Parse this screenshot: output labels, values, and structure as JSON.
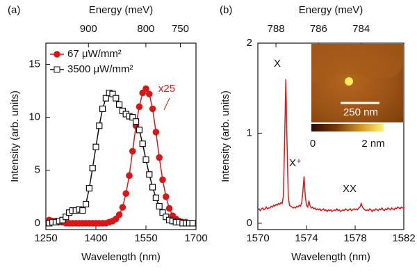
{
  "chart_data": [
    {
      "type": "line",
      "panel": "(a)",
      "x2label": "Energy (meV)",
      "xlabel": "Wavelength (nm)",
      "ylabel": "Intensity (arb. units)",
      "xlim": [
        1250,
        1700
      ],
      "xticks": [
        1250,
        1400,
        1550,
        1700
      ],
      "ylim": [
        -0.6,
        17
      ],
      "yticks": [
        0,
        5,
        10,
        15
      ],
      "x2lim": [
        991.9,
        729.3
      ],
      "x2ticks": [
        900,
        800,
        750
      ],
      "x2scale": "reciprocal",
      "legend": "upper left",
      "grid": false,
      "x": [
        1260,
        1270,
        1280,
        1290,
        1300,
        1310,
        1320,
        1330,
        1340,
        1350,
        1360,
        1370,
        1380,
        1390,
        1400,
        1410,
        1420,
        1430,
        1440,
        1450,
        1460,
        1470,
        1480,
        1490,
        1500,
        1510,
        1520,
        1530,
        1540,
        1550,
        1560,
        1570,
        1580,
        1590,
        1600,
        1610,
        1620,
        1630,
        1640,
        1650,
        1660,
        1670,
        1680,
        1690
      ],
      "series": [
        {
          "name": "67 μW/mm²",
          "color": "#d81818",
          "marker": "circle",
          "values": [
            0.3,
            0.2,
            0.2,
            0.1,
            0.1,
            0,
            0,
            0,
            0,
            0,
            0,
            0,
            0,
            0,
            0,
            0,
            0,
            0,
            0.1,
            0.2,
            0.4,
            0.8,
            1.5,
            2.8,
            4.5,
            6.8,
            9.2,
            11,
            12.3,
            12.7,
            12.2,
            10.8,
            8.6,
            6.2,
            4.1,
            2.5,
            1.4,
            0.7,
            0.4,
            0.2,
            0.1,
            0.1,
            0,
            0
          ]
        },
        {
          "name": "3500 μW/mm²",
          "color": "#111111",
          "marker": "square",
          "values": [
            0,
            0.1,
            0.1,
            0.2,
            0.3,
            0.6,
            1,
            1.2,
            1.2,
            1.3,
            1.2,
            1.8,
            3.3,
            5.2,
            7.2,
            9.2,
            10.8,
            11.8,
            12.3,
            12.2,
            11.8,
            11.2,
            10.6,
            10.3,
            10.1,
            10,
            9.6,
            8.8,
            7.5,
            6,
            4.6,
            3.4,
            2.4,
            1.6,
            1,
            0.6,
            0.3,
            0.2,
            0.1,
            0.1,
            0,
            0,
            0,
            0
          ]
        }
      ],
      "annotations": [
        "x25"
      ]
    },
    {
      "type": "line",
      "panel": "(b)",
      "x2label": "Energy (meV)",
      "xlabel": "Wavelength (nm)",
      "ylabel": "Intensity (arb. units)",
      "xlim": [
        1570,
        1582
      ],
      "xticks": [
        1570,
        1574,
        1578,
        1582
      ],
      "ylim": [
        -0.07,
        2
      ],
      "yticks": [
        0,
        1,
        2
      ],
      "x2lim": [
        788.85,
        782
      ],
      "x2ticks": [
        788,
        786,
        784
      ],
      "x2scale": "linear",
      "grid": false,
      "x": [
        1570,
        1570.1,
        1570.2,
        1570.3,
        1570.4,
        1570.5,
        1570.6,
        1570.7,
        1570.8,
        1570.9,
        1571,
        1571.1,
        1571.2,
        1571.3,
        1571.4,
        1571.5,
        1571.6,
        1571.7,
        1571.8,
        1571.9,
        1572,
        1572.1,
        1572.2,
        1572.3,
        1572.4,
        1572.5,
        1572.6,
        1572.7,
        1572.8,
        1572.9,
        1573,
        1573.1,
        1573.2,
        1573.3,
        1573.4,
        1573.5,
        1573.6,
        1573.7,
        1573.8,
        1573.9,
        1574,
        1574.1,
        1574.2,
        1574.3,
        1574.4,
        1574.5,
        1574.6,
        1574.7,
        1574.8,
        1574.9,
        1575,
        1575.1,
        1575.2,
        1575.3,
        1575.4,
        1575.5,
        1575.6,
        1575.7,
        1575.8,
        1575.9,
        1576,
        1576.1,
        1576.2,
        1576.3,
        1576.4,
        1576.5,
        1576.6,
        1576.7,
        1576.8,
        1576.9,
        1577,
        1577.1,
        1577.2,
        1577.3,
        1577.4,
        1577.5,
        1577.6,
        1577.7,
        1577.8,
        1577.9,
        1578,
        1578.1,
        1578.2,
        1578.3,
        1578.4,
        1578.5,
        1578.6,
        1578.7,
        1578.8,
        1578.9,
        1579,
        1579.1,
        1579.2,
        1579.3,
        1579.4,
        1579.5,
        1579.6,
        1579.7,
        1579.8,
        1579.9,
        1580,
        1580.1,
        1580.2,
        1580.3,
        1580.4,
        1580.5,
        1580.6,
        1580.7,
        1580.8,
        1580.9,
        1581,
        1581.1,
        1581.2,
        1581.3,
        1581.4,
        1581.5,
        1581.6,
        1581.7,
        1581.8,
        1581.9,
        1582
      ],
      "series": [
        {
          "color": "#d81818",
          "marker": "none",
          "values": [
            0.15,
            0.16,
            0.14,
            0.16,
            0.17,
            0.15,
            0.16,
            0.18,
            0.16,
            0.17,
            0.17,
            0.19,
            0.18,
            0.2,
            0.19,
            0.21,
            0.2,
            0.22,
            0.21,
            0.23,
            0.22,
            0.3,
            0.9,
            1.6,
            0.9,
            0.3,
            0.2,
            0.19,
            0.18,
            0.17,
            0.18,
            0.17,
            0.19,
            0.18,
            0.2,
            0.19,
            0.22,
            0.35,
            0.52,
            0.3,
            0.2,
            0.18,
            0.25,
            0.19,
            0.17,
            0.18,
            0.16,
            0.17,
            0.15,
            0.16,
            0.15,
            0.16,
            0.14,
            0.15,
            0.16,
            0.14,
            0.15,
            0.13,
            0.15,
            0.14,
            0.15,
            0.13,
            0.14,
            0.15,
            0.14,
            0.16,
            0.14,
            0.15,
            0.13,
            0.14,
            0.15,
            0.14,
            0.16,
            0.15,
            0.14,
            0.15,
            0.16,
            0.14,
            0.15,
            0.16,
            0.15,
            0.16,
            0.15,
            0.17,
            0.18,
            0.22,
            0.18,
            0.16,
            0.15,
            0.14,
            0.15,
            0.14,
            0.16,
            0.15,
            0.13,
            0.15,
            0.14,
            0.16,
            0.15,
            0.14,
            0.16,
            0.15,
            0.17,
            0.15,
            0.14,
            0.16,
            0.15,
            0.17,
            0.16,
            0.15,
            0.17,
            0.16,
            0.15,
            0.17,
            0.16,
            0.18,
            0.17,
            0.16,
            0.18,
            0.17,
            0.17
          ]
        }
      ],
      "annotations": [
        "X",
        "X⁺",
        "XX"
      ],
      "inset": {
        "scale_bar": "250 nm",
        "colorbar_ticks": [
          "0",
          "2 nm"
        ]
      }
    }
  ]
}
